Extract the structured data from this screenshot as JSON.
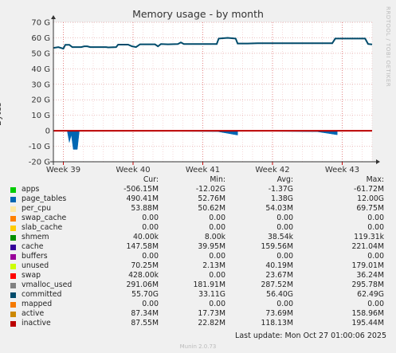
{
  "page": {
    "title": "Memory usage - by month",
    "watermark": "RRDTOOL / TOBI OETIKER",
    "last_update": "Last update: Mon Oct 27 01:00:06 2025",
    "version": "Munin 2.0.73"
  },
  "legend_header": {
    "cur": "Cur:",
    "min": "Min:",
    "avg": "Avg:",
    "max": "Max:"
  },
  "legend": [
    {
      "name": "apps",
      "color": "#00cc00",
      "cur": "-506.15M",
      "min": "-12.02G",
      "avg": "-1.37G",
      "max": "-61.72M"
    },
    {
      "name": "page_tables",
      "color": "#0066b3",
      "cur": "490.41M",
      "min": "52.76M",
      "avg": "1.38G",
      "max": "12.00G"
    },
    {
      "name": "per_cpu",
      "color": "#ffe8a0",
      "cur": "53.88M",
      "min": "50.62M",
      "avg": "54.03M",
      "max": "69.75M"
    },
    {
      "name": "swap_cache",
      "color": "#ff8000",
      "cur": "0.00",
      "min": "0.00",
      "avg": "0.00",
      "max": "0.00"
    },
    {
      "name": "slab_cache",
      "color": "#ffcc00",
      "cur": "0.00",
      "min": "0.00",
      "avg": "0.00",
      "max": "0.00"
    },
    {
      "name": "shmem",
      "color": "#008f00",
      "cur": "40.00k",
      "min": "8.00k",
      "avg": "38.54k",
      "max": "119.31k"
    },
    {
      "name": "cache",
      "color": "#330099",
      "cur": "147.58M",
      "min": "39.95M",
      "avg": "159.56M",
      "max": "221.04M"
    },
    {
      "name": "buffers",
      "color": "#990099",
      "cur": "0.00",
      "min": "0.00",
      "avg": "0.00",
      "max": "0.00"
    },
    {
      "name": "unused",
      "color": "#ccff00",
      "cur": "70.25M",
      "min": "2.13M",
      "avg": "40.19M",
      "max": "179.01M"
    },
    {
      "name": "swap",
      "color": "#ff0000",
      "cur": "428.00k",
      "min": "0.00",
      "avg": "23.67M",
      "max": "36.24M"
    },
    {
      "name": "vmalloc_used",
      "color": "#808080",
      "cur": "291.06M",
      "min": "181.91M",
      "avg": "287.52M",
      "max": "295.78M"
    },
    {
      "name": "committed",
      "color": "#004b6b",
      "cur": "55.70G",
      "min": "33.11G",
      "avg": "56.40G",
      "max": "62.49G"
    },
    {
      "name": "mapped",
      "color": "#f57900",
      "cur": "0.00",
      "min": "0.00",
      "avg": "0.00",
      "max": "0.00"
    },
    {
      "name": "active",
      "color": "#cc8800",
      "cur": "87.34M",
      "min": "17.73M",
      "avg": "73.69M",
      "max": "158.96M"
    },
    {
      "name": "inactive",
      "color": "#bb0000",
      "cur": "87.55M",
      "min": "22.82M",
      "avg": "118.13M",
      "max": "195.44M"
    }
  ],
  "chart_data": {
    "type": "line",
    "title": "Memory usage - by month",
    "xlabel": "",
    "ylabel": "Bytes",
    "ylim": [
      -20,
      70
    ],
    "yunit": "G",
    "yticks": [
      -20,
      -10,
      0,
      10,
      20,
      30,
      40,
      50,
      60,
      70
    ],
    "ytick_labels": [
      "-20 G",
      "-10 G",
      "0",
      "10 G",
      "20 G",
      "30 G",
      "40 G",
      "50 G",
      "60 G",
      "70 G"
    ],
    "xlim": [
      0,
      32
    ],
    "xticks": [
      1,
      8,
      15,
      22,
      29
    ],
    "xtick_labels": [
      "Week 39",
      "Week 40",
      "Week 41",
      "Week 42",
      "Week 43"
    ],
    "grid": true,
    "committed": {
      "name": "committed",
      "color": "#004b6b",
      "points": [
        [
          0,
          53.5
        ],
        [
          0.5,
          54
        ],
        [
          1,
          53
        ],
        [
          1.2,
          55.5
        ],
        [
          1.6,
          55.5
        ],
        [
          1.9,
          54
        ],
        [
          2.8,
          54
        ],
        [
          3.1,
          54.5
        ],
        [
          3.4,
          54.5
        ],
        [
          3.7,
          54
        ],
        [
          5.3,
          54
        ],
        [
          5.5,
          53.8
        ],
        [
          6.3,
          54
        ],
        [
          6.5,
          55.6
        ],
        [
          7.5,
          55.6
        ],
        [
          7.9,
          54.5
        ],
        [
          8.3,
          54
        ],
        [
          8.7,
          55.8
        ],
        [
          10.2,
          55.8
        ],
        [
          10.5,
          54.5
        ],
        [
          10.8,
          56
        ],
        [
          11.5,
          55.8
        ],
        [
          12.5,
          56
        ],
        [
          12.8,
          57
        ],
        [
          13.1,
          56
        ],
        [
          16.4,
          56
        ],
        [
          16.6,
          59.5
        ],
        [
          17.5,
          60
        ],
        [
          18.3,
          59.5
        ],
        [
          18.5,
          56.3
        ],
        [
          19.5,
          56.3
        ],
        [
          20.5,
          56.5
        ],
        [
          28,
          56.5
        ],
        [
          28.3,
          59.5
        ],
        [
          31.3,
          59.5
        ],
        [
          31.6,
          56
        ],
        [
          32,
          55.7
        ]
      ]
    },
    "apps_negative": {
      "name": "apps",
      "color": "#0066b3",
      "segments": [
        {
          "x": [
            1.4,
            1.6,
            1.8,
            2.0,
            2.2,
            2.4,
            2.6
          ],
          "y": [
            -0.3,
            -7.5,
            -2.5,
            -12,
            -12,
            -12,
            -0.3
          ]
        },
        {
          "x": [
            12.0,
            16.5,
            18.5
          ],
          "y": [
            -0.3,
            -0.5,
            -2.8
          ]
        },
        {
          "x": [
            21.5,
            26.5,
            28.5
          ],
          "y": [
            -0.3,
            -0.6,
            -2.6
          ]
        }
      ]
    },
    "swap": {
      "name": "swap",
      "color": "#bb0000",
      "value": 0
    }
  }
}
